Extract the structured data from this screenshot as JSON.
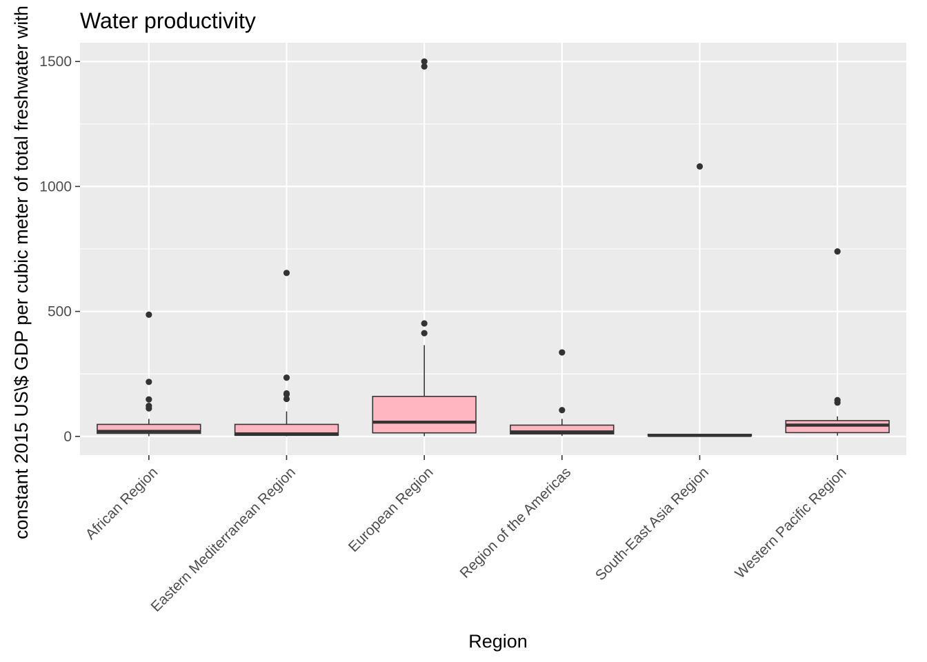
{
  "chart_data": {
    "type": "boxplot",
    "title": "Water productivity",
    "xlabel": "Region",
    "ylabel": "constant 2015 US\\$ GDP per cubic meter of total freshwater with",
    "ylim": [
      -75,
      1575
    ],
    "y_ticks": [
      0,
      500,
      1000,
      1500
    ],
    "grid": true,
    "legend": "none",
    "categories": [
      "African Region",
      "Eastern Mediterranean Region",
      "European Region",
      "Region of the Americas",
      "South-East Asia Region",
      "Western Pacific Region"
    ],
    "boxes": [
      {
        "q1": 12,
        "median": 20,
        "q3": 48,
        "whisker_low": 1,
        "whisker_high": 70,
        "outliers": [
          487,
          218,
          148,
          122,
          112
        ]
      },
      {
        "q1": 4,
        "median": 10,
        "q3": 48,
        "whisker_low": 1,
        "whisker_high": 100,
        "outliers": [
          654,
          235,
          172,
          168,
          150
        ]
      },
      {
        "q1": 14,
        "median": 57,
        "q3": 160,
        "whisker_low": 1,
        "whisker_high": 365,
        "outliers": [
          1500,
          1480,
          452,
          413
        ]
      },
      {
        "q1": 10,
        "median": 18,
        "q3": 45,
        "whisker_low": 2,
        "whisker_high": 70,
        "outliers": [
          336,
          105
        ]
      },
      {
        "q1": 2,
        "median": 4,
        "q3": 8,
        "whisker_low": 1,
        "whisker_high": 10,
        "outliers": [
          1080
        ]
      },
      {
        "q1": 15,
        "median": 45,
        "q3": 63,
        "whisker_low": 3,
        "whisker_high": 80,
        "outliers": [
          740,
          145,
          135
        ]
      }
    ],
    "colors": {
      "panel": "#ebebeb",
      "grid": "#ffffff",
      "box_fill": "#ffb6c1",
      "box_stroke": "#333333",
      "outlier": "#333333",
      "tick_text": "#4d4d4d",
      "tick_mark": "#333333"
    }
  }
}
